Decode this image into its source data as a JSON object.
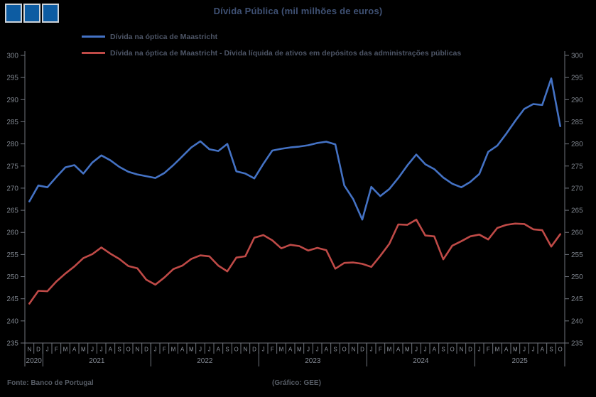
{
  "title": "Dívida Pública (mil milhões de euros)",
  "logo": {
    "type": "three-blue-squares",
    "square_color": "#0d5ca2",
    "border_color": "#ccd2d8",
    "count": 3
  },
  "legend": [
    {
      "label": "Dívida na óptica de Maastricht",
      "color": "#4472c4"
    },
    {
      "label": "Dívida na óptica de Maastricht - Dívida líquida de ativos em depósitos das administrações públicas",
      "color": "#bf4a47"
    }
  ],
  "footer": {
    "source": "Fonte: Banco de Portugal",
    "credit": "(Gráfico: GEE)"
  },
  "colors": {
    "background": "#000000",
    "title": "#3f5174",
    "legend_text": "#4d5566",
    "axis": "#6f747c",
    "ytick_label": "#7d838c",
    "month_label": "#9096a0",
    "year_label": "#858b95",
    "footer_text": "#575d66",
    "series_blue": "#4472c4",
    "series_red": "#bf4a47"
  },
  "chart_data": {
    "type": "line",
    "title": "Dívida Pública (mil milhões de euros)",
    "ylabel": "",
    "xlabel": "",
    "ylim": [
      235,
      300
    ],
    "yticks": [
      235,
      240,
      245,
      250,
      255,
      260,
      265,
      270,
      275,
      280,
      285,
      290,
      295,
      300
    ],
    "grid": false,
    "legend_position": "top-left",
    "y_axis_sides": "both",
    "x_months": [
      "N",
      "D",
      "J",
      "F",
      "M",
      "A",
      "M",
      "J",
      "J",
      "A",
      "S",
      "O",
      "N",
      "D",
      "J",
      "F",
      "M",
      "A",
      "M",
      "J",
      "J",
      "A",
      "S",
      "O",
      "N",
      "D",
      "J",
      "F",
      "M",
      "A",
      "M",
      "J",
      "J",
      "A",
      "S",
      "O",
      "N",
      "D",
      "J",
      "F",
      "M",
      "A",
      "M",
      "J",
      "J",
      "A",
      "S",
      "O",
      "N",
      "D",
      "J",
      "F",
      "M",
      "A",
      "M",
      "J",
      "J",
      "A",
      "S",
      "O"
    ],
    "x_years": [
      {
        "label": "2020",
        "months": 2
      },
      {
        "label": "2021",
        "months": 12
      },
      {
        "label": "2022",
        "months": 12
      },
      {
        "label": "2023",
        "months": 12
      },
      {
        "label": "2024",
        "months": 12
      },
      {
        "label": "2025",
        "months": 10
      }
    ],
    "x_range_note": "monthly, Nov 2020 - Oct 2025",
    "series": [
      {
        "name": "Dívida na óptica de Maastricht",
        "color": "#4472c4",
        "values": [
          267.0,
          270.6,
          270.2,
          272.5,
          274.7,
          275.2,
          273.3,
          275.8,
          277.4,
          276.3,
          274.8,
          273.7,
          273.1,
          272.7,
          272.3,
          273.4,
          275.2,
          277.2,
          279.2,
          280.6,
          278.8,
          278.4,
          280.0,
          273.8,
          273.3,
          272.2,
          275.5,
          278.5,
          278.9,
          279.2,
          279.4,
          279.7,
          280.2,
          280.5,
          279.9,
          270.6,
          267.5,
          262.9,
          270.3,
          268.2,
          269.8,
          272.3,
          275.1,
          277.6,
          275.4,
          274.3,
          272.4,
          271.0,
          270.2,
          271.4,
          273.2,
          278.2,
          279.6,
          282.3,
          285.2,
          287.9,
          289.0,
          288.8,
          294.8,
          284.0
        ]
      },
      {
        "name": "Dívida na óptica de Maastricht - Dívida líquida de ativos em depósitos das administrações públicas",
        "color": "#bf4a47",
        "values": [
          243.9,
          246.8,
          246.7,
          248.9,
          250.7,
          252.3,
          254.2,
          255.1,
          256.6,
          255.2,
          254.0,
          252.4,
          251.9,
          249.3,
          248.2,
          249.8,
          251.7,
          252.5,
          254.0,
          254.8,
          254.6,
          252.5,
          251.2,
          254.3,
          254.6,
          258.8,
          259.4,
          258.2,
          256.4,
          257.2,
          256.9,
          255.9,
          256.5,
          256.0,
          251.8,
          253.1,
          253.2,
          252.9,
          252.2,
          254.7,
          257.4,
          261.8,
          261.7,
          262.9,
          259.3,
          259.1,
          253.9,
          257.0,
          258.0,
          259.1,
          259.5,
          258.4,
          261.0,
          261.7,
          262.0,
          261.9,
          260.7,
          260.5,
          256.8,
          259.6
        ]
      }
    ]
  }
}
